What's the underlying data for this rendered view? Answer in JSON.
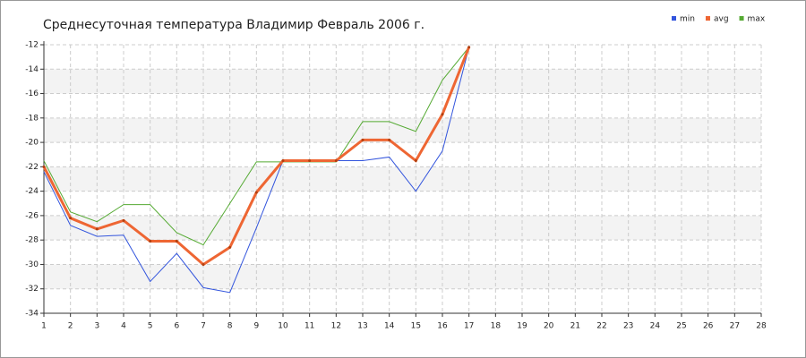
{
  "chart_data": {
    "type": "line",
    "title": "Среднесуточная температура Владимир  Февраль 2006 г.",
    "x": [
      1,
      2,
      3,
      4,
      5,
      6,
      7,
      8,
      9,
      10,
      11,
      12,
      13,
      14,
      15,
      16,
      17
    ],
    "series": [
      {
        "name": "min",
        "color": "#3355dd",
        "values": [
          -22.4,
          -26.8,
          -27.7,
          -27.6,
          -31.4,
          -29.1,
          -31.9,
          -32.3,
          -27.0,
          -21.5,
          -21.5,
          -21.5,
          -21.5,
          -21.2,
          -24.0,
          -20.7,
          -12.2
        ]
      },
      {
        "name": "avg",
        "color": "#ee6633",
        "values": [
          -22.0,
          -26.2,
          -27.1,
          -26.4,
          -28.1,
          -28.1,
          -30.0,
          -28.6,
          -24.1,
          -21.5,
          -21.5,
          -21.5,
          -19.8,
          -19.8,
          -21.5,
          -17.7,
          -12.2
        ]
      },
      {
        "name": "max",
        "color": "#55aa33",
        "values": [
          -21.5,
          -25.7,
          -26.5,
          -25.1,
          -25.1,
          -27.4,
          -28.4,
          -25.0,
          -21.6,
          -21.6,
          -21.6,
          -21.6,
          -18.3,
          -18.3,
          -19.1,
          -14.9,
          -12.2
        ]
      }
    ],
    "xlim": [
      1,
      28
    ],
    "xticks": [
      1,
      2,
      3,
      4,
      5,
      6,
      7,
      8,
      9,
      10,
      11,
      12,
      13,
      14,
      15,
      16,
      17,
      18,
      19,
      20,
      21,
      22,
      23,
      24,
      25,
      26,
      27,
      28
    ],
    "ylim": [
      -34,
      -12
    ],
    "yticks": [
      -12,
      -14,
      -16,
      -18,
      -20,
      -22,
      -24,
      -26,
      -28,
      -30,
      -32,
      -34
    ],
    "grid": true,
    "legend": "top-right"
  }
}
